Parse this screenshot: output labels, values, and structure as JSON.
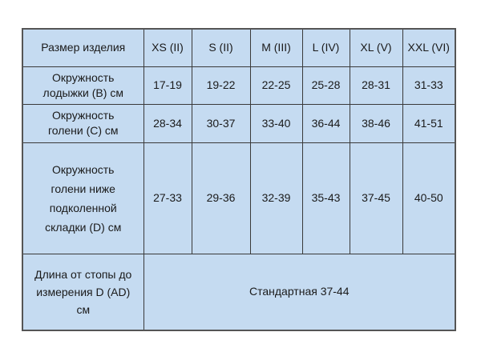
{
  "table": {
    "header": [
      "Размер изделия",
      "XS (II)",
      "S (II)",
      "M (III)",
      "L (IV)",
      "XL (V)",
      "XXL (VI)"
    ],
    "rows": [
      {
        "label": "Окружность лодыжки (B) см",
        "values": [
          "17-19",
          "19-22",
          "22-25",
          "25-28",
          "28-31",
          "31-33"
        ]
      },
      {
        "label": "Окружность голени (C) см",
        "values": [
          "28-34",
          "30-37",
          "33-40",
          "36-44",
          "38-46",
          "41-51"
        ]
      },
      {
        "label": "Окружность голени ниже подколенной складки (D) см",
        "values": [
          "27-33",
          "29-36",
          "32-39",
          "35-43",
          "37-45",
          "40-50"
        ]
      }
    ],
    "length_row": {
      "label": "Длина от стопы до измерения D (AD) см",
      "value": "Стандартная 37-44"
    }
  },
  "colors": {
    "cell_fill": "#c5dbf1",
    "border": "#3a3a3a"
  }
}
